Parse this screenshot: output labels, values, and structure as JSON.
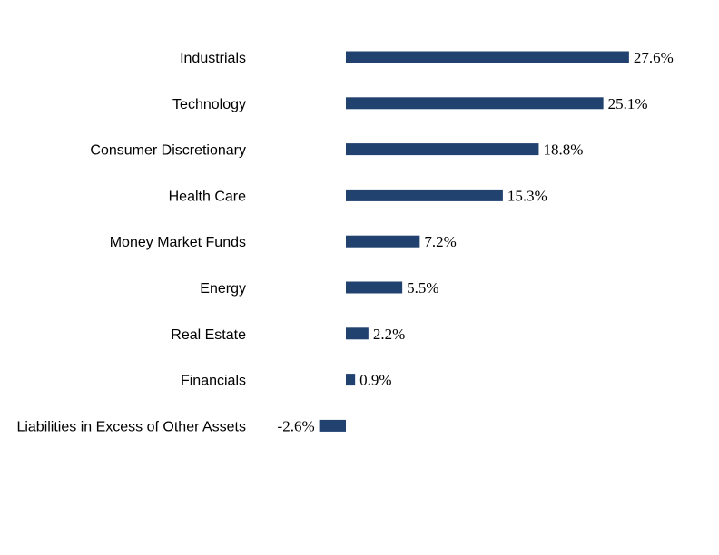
{
  "chart_data": {
    "type": "bar",
    "orientation": "horizontal",
    "categories": [
      "Industrials",
      "Technology",
      "Consumer Discretionary",
      "Health Care",
      "Money Market Funds",
      "Energy",
      "Real Estate",
      "Financials",
      "Liabilities in Excess of Other Assets"
    ],
    "values": [
      27.6,
      25.1,
      18.8,
      15.3,
      7.2,
      5.5,
      2.2,
      0.9,
      -2.6
    ],
    "value_labels": [
      "27.6%",
      "25.1%",
      "18.8%",
      "15.3%",
      "7.2%",
      "5.5%",
      "2.2%",
      "0.9%",
      "-2.6%"
    ],
    "bar_color": "#21426F",
    "grid": false,
    "legend": "none"
  }
}
